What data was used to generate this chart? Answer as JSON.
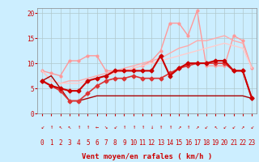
{
  "xlabel": "Vent moyen/en rafales ( km/h )",
  "bg_color": "#cceeff",
  "grid_color": "#b0c8cc",
  "xlim": [
    -0.5,
    23.5
  ],
  "ylim": [
    0,
    21
  ],
  "yticks": [
    0,
    5,
    10,
    15,
    20
  ],
  "xticks": [
    0,
    1,
    2,
    3,
    4,
    5,
    6,
    7,
    8,
    9,
    10,
    11,
    12,
    13,
    14,
    15,
    16,
    17,
    18,
    19,
    20,
    21,
    22,
    23
  ],
  "series": [
    {
      "x": [
        0,
        1,
        2,
        3,
        4,
        5,
        6,
        7,
        8,
        9,
        10,
        11,
        12,
        13,
        14,
        15,
        16,
        17,
        18,
        19,
        20,
        21,
        22,
        23
      ],
      "y": [
        8.5,
        8.0,
        7.5,
        10.5,
        10.5,
        11.5,
        11.5,
        8.5,
        8.5,
        8.5,
        9.0,
        9.5,
        10.5,
        12.5,
        18.0,
        18.0,
        15.5,
        20.5,
        9.5,
        9.5,
        9.5,
        15.5,
        14.5,
        9.0
      ],
      "color": "#ff9999",
      "marker": "o",
      "markersize": 2,
      "linewidth": 1.0,
      "zorder": 2
    },
    {
      "x": [
        0,
        1,
        2,
        3,
        4,
        5,
        6,
        7,
        8,
        9,
        10,
        11,
        12,
        13,
        14,
        15,
        16,
        17,
        18,
        19,
        20,
        21,
        22,
        23
      ],
      "y": [
        8.5,
        6.5,
        6.0,
        6.5,
        6.5,
        7.0,
        7.5,
        8.0,
        8.5,
        9.0,
        9.5,
        10.0,
        10.5,
        11.0,
        12.0,
        13.0,
        13.5,
        14.5,
        14.5,
        15.0,
        15.5,
        14.5,
        14.0,
        9.0
      ],
      "color": "#ffaaaa",
      "marker": null,
      "markersize": 0,
      "linewidth": 1.0,
      "zorder": 2
    },
    {
      "x": [
        0,
        1,
        2,
        3,
        4,
        5,
        6,
        7,
        8,
        9,
        10,
        11,
        12,
        13,
        14,
        15,
        16,
        17,
        18,
        19,
        20,
        21,
        22,
        23
      ],
      "y": [
        8.5,
        6.5,
        6.0,
        6.0,
        6.0,
        6.5,
        7.0,
        7.5,
        8.0,
        8.5,
        9.0,
        9.5,
        10.0,
        10.5,
        11.0,
        11.5,
        12.0,
        12.5,
        13.0,
        13.5,
        14.0,
        13.5,
        13.0,
        9.0
      ],
      "color": "#ffcccc",
      "marker": null,
      "markersize": 0,
      "linewidth": 1.0,
      "zorder": 2
    },
    {
      "x": [
        0,
        1,
        2,
        3,
        4,
        5,
        6,
        7,
        8,
        9,
        10,
        11,
        12,
        13,
        14,
        15,
        16,
        17,
        18,
        19,
        20,
        21,
        22,
        23
      ],
      "y": [
        6.5,
        5.5,
        5.0,
        4.5,
        4.5,
        6.5,
        7.0,
        7.5,
        8.5,
        8.5,
        8.5,
        8.5,
        8.5,
        11.5,
        7.5,
        9.0,
        10.0,
        10.0,
        10.0,
        10.5,
        10.5,
        8.5,
        8.5,
        3.0
      ],
      "color": "#cc0000",
      "marker": "D",
      "markersize": 2.5,
      "linewidth": 1.5,
      "zorder": 5
    },
    {
      "x": [
        0,
        1,
        2,
        3,
        4,
        5,
        6,
        7,
        8,
        9,
        10,
        11,
        12,
        13,
        14,
        15,
        16,
        17,
        18,
        19,
        20,
        21,
        22,
        23
      ],
      "y": [
        6.5,
        5.5,
        4.5,
        2.5,
        2.5,
        4.0,
        5.5,
        6.5,
        7.0,
        7.0,
        7.5,
        7.0,
        7.0,
        7.0,
        8.0,
        9.0,
        9.5,
        10.0,
        10.0,
        10.0,
        10.0,
        8.5,
        8.5,
        3.0
      ],
      "color": "#dd3333",
      "marker": "D",
      "markersize": 2.5,
      "linewidth": 1.2,
      "zorder": 4
    },
    {
      "x": [
        0,
        1,
        2,
        3,
        4,
        5,
        6,
        7,
        8,
        9,
        10,
        11,
        12,
        13,
        14,
        15,
        16,
        17,
        18,
        19,
        20,
        21,
        22,
        23
      ],
      "y": [
        6.5,
        7.5,
        5.0,
        2.5,
        2.5,
        3.0,
        3.5,
        3.5,
        3.5,
        3.5,
        3.5,
        3.5,
        3.5,
        3.5,
        3.5,
        3.5,
        3.5,
        3.5,
        3.5,
        3.5,
        3.5,
        3.5,
        3.5,
        3.0
      ],
      "color": "#aa0000",
      "marker": null,
      "markersize": 0,
      "linewidth": 1.0,
      "zorder": 3
    }
  ],
  "wind_chars": [
    "↙",
    "↑",
    "↖",
    "↖",
    "↑",
    "↑",
    "←",
    "↘",
    "↙",
    "↑",
    "↑",
    "↑",
    "↓",
    "↑",
    "↑",
    "↗",
    "↑",
    "↗",
    "↙",
    "↖",
    "↙",
    "↙",
    "↗",
    "↙"
  ],
  "tick_fontsize": 5.5,
  "tick_color": "#cc0000",
  "label_color": "#cc0000",
  "label_fontsize": 6.5
}
